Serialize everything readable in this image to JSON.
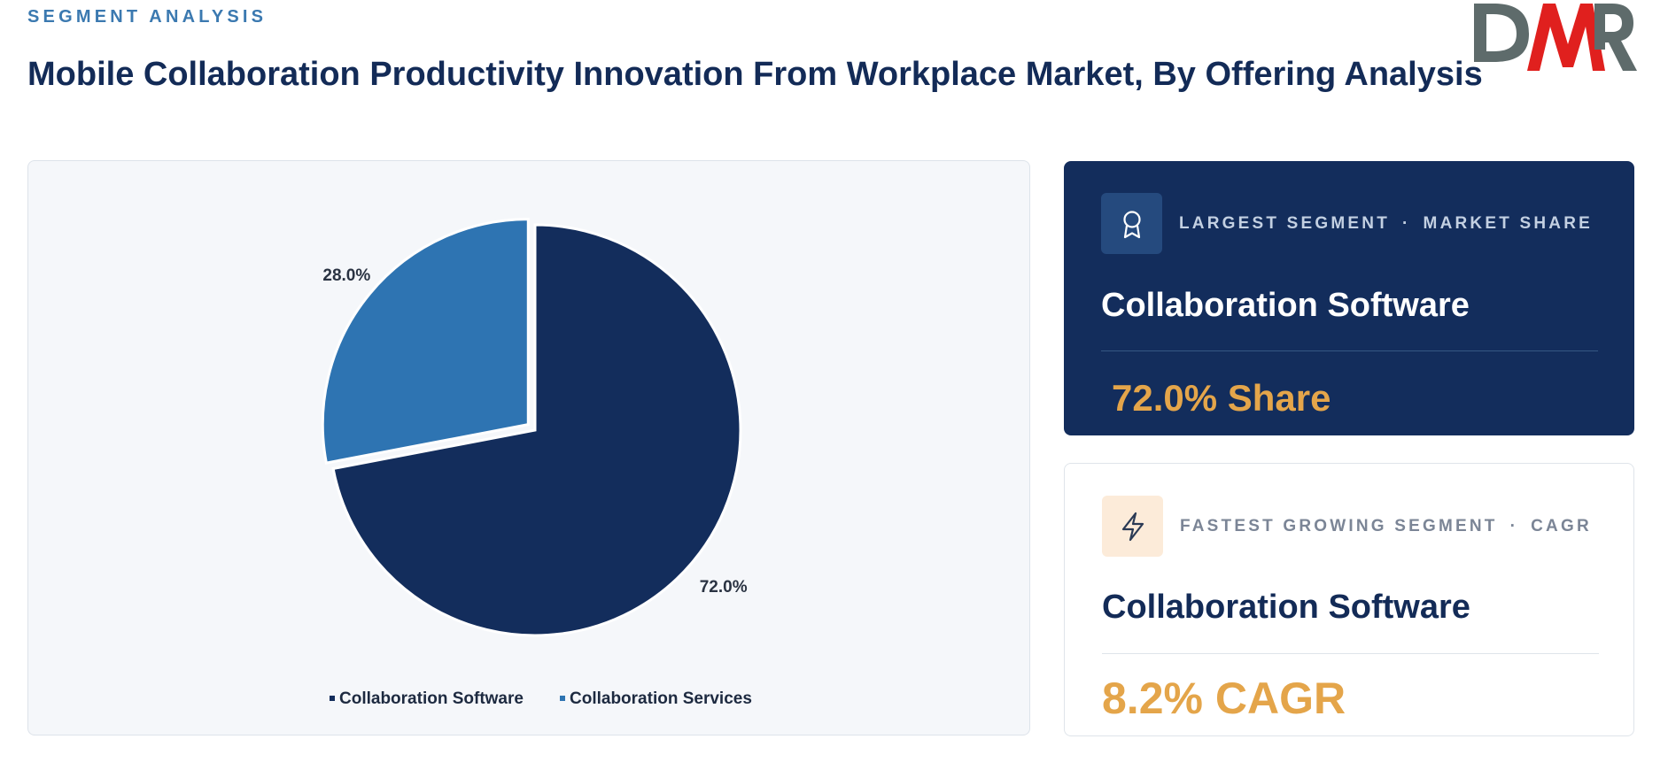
{
  "header": {
    "eyebrow": "SEGMENT ANALYSIS",
    "title": "Mobile Collaboration Productivity Innovation From Workplace Market, By Offering Analysis"
  },
  "logo": {
    "text": "DMR",
    "colors": {
      "d": "#5e6b6b",
      "m": "#e0201e",
      "r": "#5e6b6b"
    }
  },
  "chart_data": {
    "type": "pie",
    "title": "",
    "categories": [
      "Collaboration Software",
      "Collaboration Services"
    ],
    "values": [
      72.0,
      28.0
    ],
    "labels": [
      "72.0%",
      "28.0%"
    ],
    "colors": [
      "#132d5c",
      "#2e74b2"
    ],
    "legend": "bottom-center",
    "exploded": "Collaboration Services"
  },
  "cards": {
    "largest": {
      "icon": "award-ribbon-icon",
      "label_left": "LARGEST SEGMENT",
      "separator": "·",
      "label_right": "MARKET SHARE",
      "segment": "Collaboration Software",
      "metric": "72.0% Share"
    },
    "fastest": {
      "icon": "lightning-bolt-icon",
      "label_left": "FASTEST GROWING SEGMENT",
      "separator": "·",
      "label_right": "CAGR",
      "segment": "Collaboration Software",
      "metric": "8.2% CAGR"
    }
  }
}
